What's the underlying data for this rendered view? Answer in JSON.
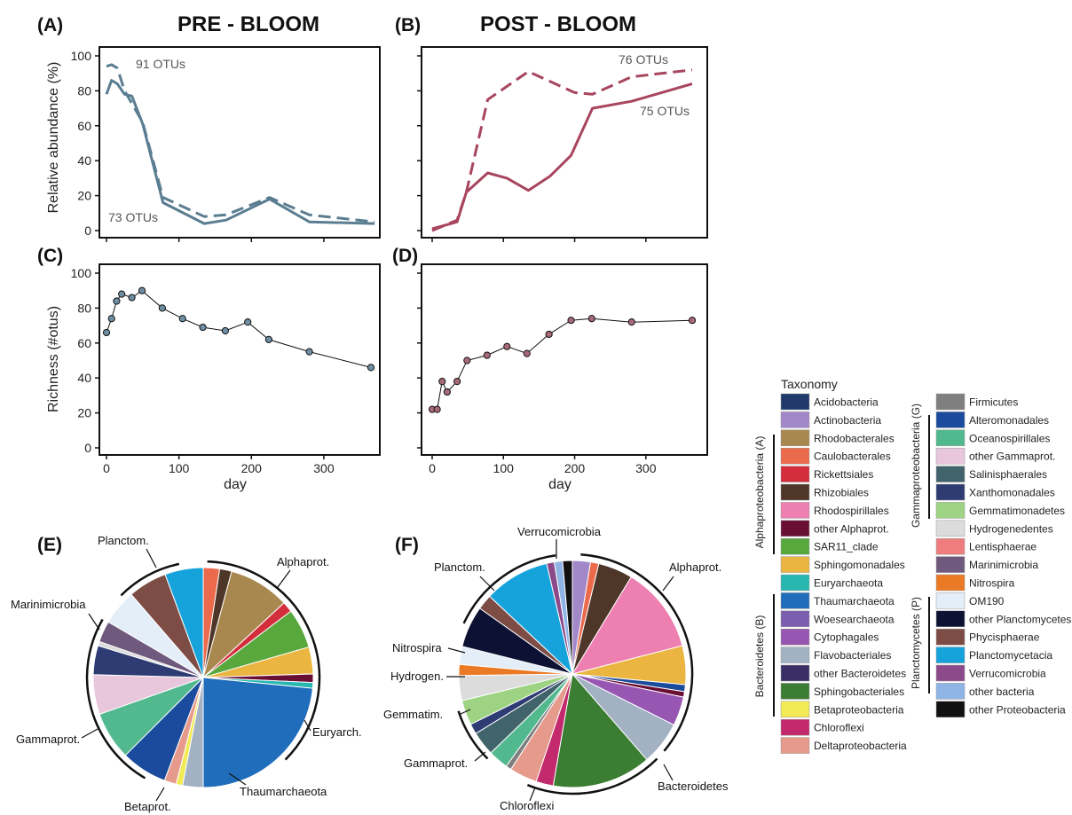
{
  "chart_data": [
    {
      "panel": "(A)",
      "title": "PRE - BLOOM",
      "type": "line",
      "ylabel": "Relative abundance (%)",
      "xlabel": "",
      "ylim": [
        0,
        100
      ],
      "yticks": [
        0,
        20,
        40,
        60,
        80,
        100
      ],
      "xlim": [
        0,
        370
      ],
      "series": [
        {
          "label": "91 OTUs",
          "style": "dashed",
          "x": [
            0,
            7,
            15,
            25,
            50,
            78,
            135,
            165,
            225,
            280,
            370
          ],
          "y": [
            94,
            95,
            93,
            80,
            62,
            19,
            8,
            9,
            19,
            9,
            5
          ]
        },
        {
          "label": "73 OTUs",
          "style": "solid",
          "x": [
            0,
            7,
            15,
            25,
            35,
            50,
            78,
            135,
            165,
            225,
            280,
            370
          ],
          "y": [
            78,
            86,
            84,
            78,
            77,
            61,
            16,
            4,
            6,
            18,
            5,
            4
          ]
        }
      ]
    },
    {
      "panel": "(B)",
      "title": "POST - BLOOM",
      "type": "line",
      "ylabel": "",
      "xlabel": "",
      "ylim": [
        0,
        100
      ],
      "xlim": [
        0,
        370
      ],
      "series": [
        {
          "label": "76 OTUs",
          "style": "dashed",
          "x": [
            0,
            35,
            48,
            78,
            135,
            200,
            225,
            280,
            365
          ],
          "y": [
            0,
            6,
            22,
            75,
            91,
            79,
            78,
            88,
            92
          ]
        },
        {
          "label": "75 OTUs",
          "style": "solid",
          "x": [
            0,
            35,
            48,
            78,
            105,
            135,
            165,
            195,
            225,
            280,
            365
          ],
          "y": [
            1,
            5,
            22,
            33,
            30,
            23,
            31,
            43,
            70,
            74,
            84
          ]
        }
      ]
    },
    {
      "panel": "(C)",
      "type": "scatter",
      "ylabel": "Richness (#otus)",
      "xlabel": "day",
      "ylim": [
        0,
        100
      ],
      "yticks": [
        0,
        20,
        40,
        60,
        80,
        100
      ],
      "xlim": [
        0,
        370
      ],
      "xticks": [
        0,
        100,
        200,
        300
      ],
      "x": [
        0,
        7,
        14,
        21,
        35,
        49,
        77,
        105,
        133,
        164,
        195,
        224,
        280,
        365
      ],
      "y": [
        66,
        74,
        84,
        88,
        86,
        90,
        80,
        74,
        69,
        67,
        72,
        62,
        55,
        46
      ]
    },
    {
      "panel": "(D)",
      "type": "scatter",
      "ylabel": "",
      "xlabel": "day",
      "ylim": [
        0,
        100
      ],
      "xlim": [
        0,
        370
      ],
      "xticks": [
        0,
        100,
        200,
        300
      ],
      "x": [
        0,
        7,
        14,
        21,
        35,
        49,
        77,
        105,
        133,
        164,
        195,
        224,
        280,
        365
      ],
      "y": [
        22,
        22,
        38,
        32,
        38,
        50,
        53,
        58,
        54,
        65,
        73,
        74,
        72,
        73
      ]
    },
    {
      "panel": "(E)",
      "type": "pie",
      "slices": [
        {
          "name": "Caulobacterales",
          "value": 2.3
        },
        {
          "name": "Rhizobiales",
          "value": 1.7
        },
        {
          "name": "Rhodobacterales",
          "value": 8.6
        },
        {
          "name": "Rickettsiales",
          "value": 1.5
        },
        {
          "name": "SAR11_clade",
          "value": 5.6
        },
        {
          "name": "Sphingomonadales",
          "value": 3.8
        },
        {
          "name": "other Alphaprot.",
          "value": 1.2
        },
        {
          "name": "Euryarchaeota",
          "value": 0.8
        },
        {
          "name": "Thaumarchaeota",
          "value": 22.5
        },
        {
          "name": "Flavobacteriales",
          "value": 2.9
        },
        {
          "name": "Betaproteobacteria",
          "value": 0.9
        },
        {
          "name": "Deltaproteobacteria",
          "value": 1.7
        },
        {
          "name": "Alteromonadales",
          "value": 6.5
        },
        {
          "name": "Oceanospirillales",
          "value": 6.8
        },
        {
          "name": "other Gammaprot.",
          "value": 5.6
        },
        {
          "name": "Xanthomonadales",
          "value": 4.1
        },
        {
          "name": "Hydrogenedentes",
          "value": 0.6
        },
        {
          "name": "Marinimicrobia",
          "value": 3.0
        },
        {
          "name": "OM190",
          "value": 5.0
        },
        {
          "name": "Phycisphaerae",
          "value": 5.5
        },
        {
          "name": "Planctomycetacia",
          "value": 5.4
        }
      ],
      "labels": [
        "Planctom.",
        "Alphaprot.",
        "Marinimicrobia",
        "Euryarch.",
        "Gammaprot.",
        "Thaumarchaeota",
        "Betaprot."
      ]
    },
    {
      "panel": "(F)",
      "type": "pie",
      "slices": [
        {
          "name": "Actinobacteria",
          "value": 2.6
        },
        {
          "name": "Caulobacterales",
          "value": 1.2
        },
        {
          "name": "Rhizobiales",
          "value": 5.0
        },
        {
          "name": "Rhodospirillales",
          "value": 12.5
        },
        {
          "name": "Sphingomonadales",
          "value": 5.6
        },
        {
          "name": "Alteromonadales",
          "value": 1.0
        },
        {
          "name": "other Alphaprot.",
          "value": 0.8
        },
        {
          "name": "Cytophagales",
          "value": 4.2
        },
        {
          "name": "Flavobacteriales",
          "value": 6.3
        },
        {
          "name": "Sphingobacteriales",
          "value": 14.3
        },
        {
          "name": "Chloroflexi",
          "value": 2.5
        },
        {
          "name": "Deltaproteobacteria",
          "value": 4.0
        },
        {
          "name": "Firmicutes",
          "value": 0.8
        },
        {
          "name": "Oceanospirillales",
          "value": 2.9
        },
        {
          "name": "Salinisphaerales",
          "value": 3.5
        },
        {
          "name": "Xanthomonadales",
          "value": 1.5
        },
        {
          "name": "Gemmatimonadetes",
          "value": 3.6
        },
        {
          "name": "Hydrogenedentes",
          "value": 3.6
        },
        {
          "name": "Nitrospira",
          "value": 1.6
        },
        {
          "name": "OM190",
          "value": 2.6
        },
        {
          "name": "other Planctomycetes",
          "value": 6.0
        },
        {
          "name": "Phycisphaerae",
          "value": 2.2
        },
        {
          "name": "Planctomycetacia",
          "value": 9.5
        },
        {
          "name": "Verrucomicrobia",
          "value": 1.1
        },
        {
          "name": "other bacteria",
          "value": 1.2
        },
        {
          "name": "other Proteobacteria",
          "value": 1.4
        }
      ],
      "labels": [
        "Verrucomicrobia",
        "Planctom.",
        "Alphaprot.",
        "Nitrospira",
        "Hydrogen.",
        "Gemmatim.",
        "Gammaprot.",
        "Chloroflexi",
        "Bacteroidetes"
      ]
    }
  ],
  "legend": {
    "title": "Taxonomy",
    "col1": [
      {
        "name": "Acidobacteria",
        "color": "#1f3a6b"
      },
      {
        "name": "Actinobacteria",
        "color": "#a287c9"
      },
      {
        "name": "Rhodobacterales",
        "color": "#a8884f"
      },
      {
        "name": "Caulobacterales",
        "color": "#ec6a4c"
      },
      {
        "name": "Rickettsiales",
        "color": "#d42e3c"
      },
      {
        "name": "Rhizobiales",
        "color": "#4e3628"
      },
      {
        "name": "Rhodospirillales",
        "color": "#ee7fb1"
      },
      {
        "name": "other Alphaprot.",
        "color": "#6a0f34"
      },
      {
        "name": "SAR11_clade",
        "color": "#58a83e"
      },
      {
        "name": "Sphingomonadales",
        "color": "#ebb542"
      },
      {
        "name": "Euryarchaeota",
        "color": "#28b8b1"
      },
      {
        "name": "Thaumarchaeota",
        "color": "#1f6dbb"
      },
      {
        "name": "Woesearchaeota",
        "color": "#7b5fae"
      },
      {
        "name": "Cytophagales",
        "color": "#9756b2"
      },
      {
        "name": "Flavobacteriales",
        "color": "#a2b2c3"
      },
      {
        "name": "other Bacteroidetes",
        "color": "#3b2e66"
      },
      {
        "name": "Sphingobacteriales",
        "color": "#3b7d33"
      },
      {
        "name": "Betaproteobacteria",
        "color": "#f1ea55"
      },
      {
        "name": "Chloroflexi",
        "color": "#c22a6d"
      },
      {
        "name": "Deltaproteobacteria",
        "color": "#e59a8c"
      }
    ],
    "col2": [
      {
        "name": "Firmicutes",
        "color": "#7f7f7f"
      },
      {
        "name": "Alteromonadales",
        "color": "#1a4b9c"
      },
      {
        "name": "Oceanospirillales",
        "color": "#52b98f"
      },
      {
        "name": "other Gammaprot.",
        "color": "#e8c6dc"
      },
      {
        "name": "Salinisphaerales",
        "color": "#41636b"
      },
      {
        "name": "Xanthomonadales",
        "color": "#2e3c73"
      },
      {
        "name": "Gemmatimonadetes",
        "color": "#9ed384"
      },
      {
        "name": "Hydrogenedentes",
        "color": "#dcdcdc"
      },
      {
        "name": "Lentisphaerae",
        "color": "#ef7d7d"
      },
      {
        "name": "Marinimicrobia",
        "color": "#6f5a7e"
      },
      {
        "name": "Nitrospira",
        "color": "#ea7a26"
      },
      {
        "name": "OM190",
        "color": "#e3eef9"
      },
      {
        "name": "other Planctomycetes",
        "color": "#0d1133"
      },
      {
        "name": "Phycisphaerae",
        "color": "#7c4c45"
      },
      {
        "name": "Planctomycetacia",
        "color": "#16a3dc"
      },
      {
        "name": "Verrucomicrobia",
        "color": "#8c4a8a"
      },
      {
        "name": "other bacteria",
        "color": "#8fb5e6"
      },
      {
        "name": "other Proteobacteria",
        "color": "#111111"
      }
    ],
    "groups": [
      "Alphaproteobacteria (A)",
      "Bacteroidetes (B)",
      "Gammaproteobacteria (G)",
      "Planctomycetes (P)"
    ]
  },
  "colors": {
    "pre": "#5a7d91",
    "post": "#a8455f",
    "pre_dot": "#6f8ea3",
    "post_dot": "#a86a78"
  }
}
